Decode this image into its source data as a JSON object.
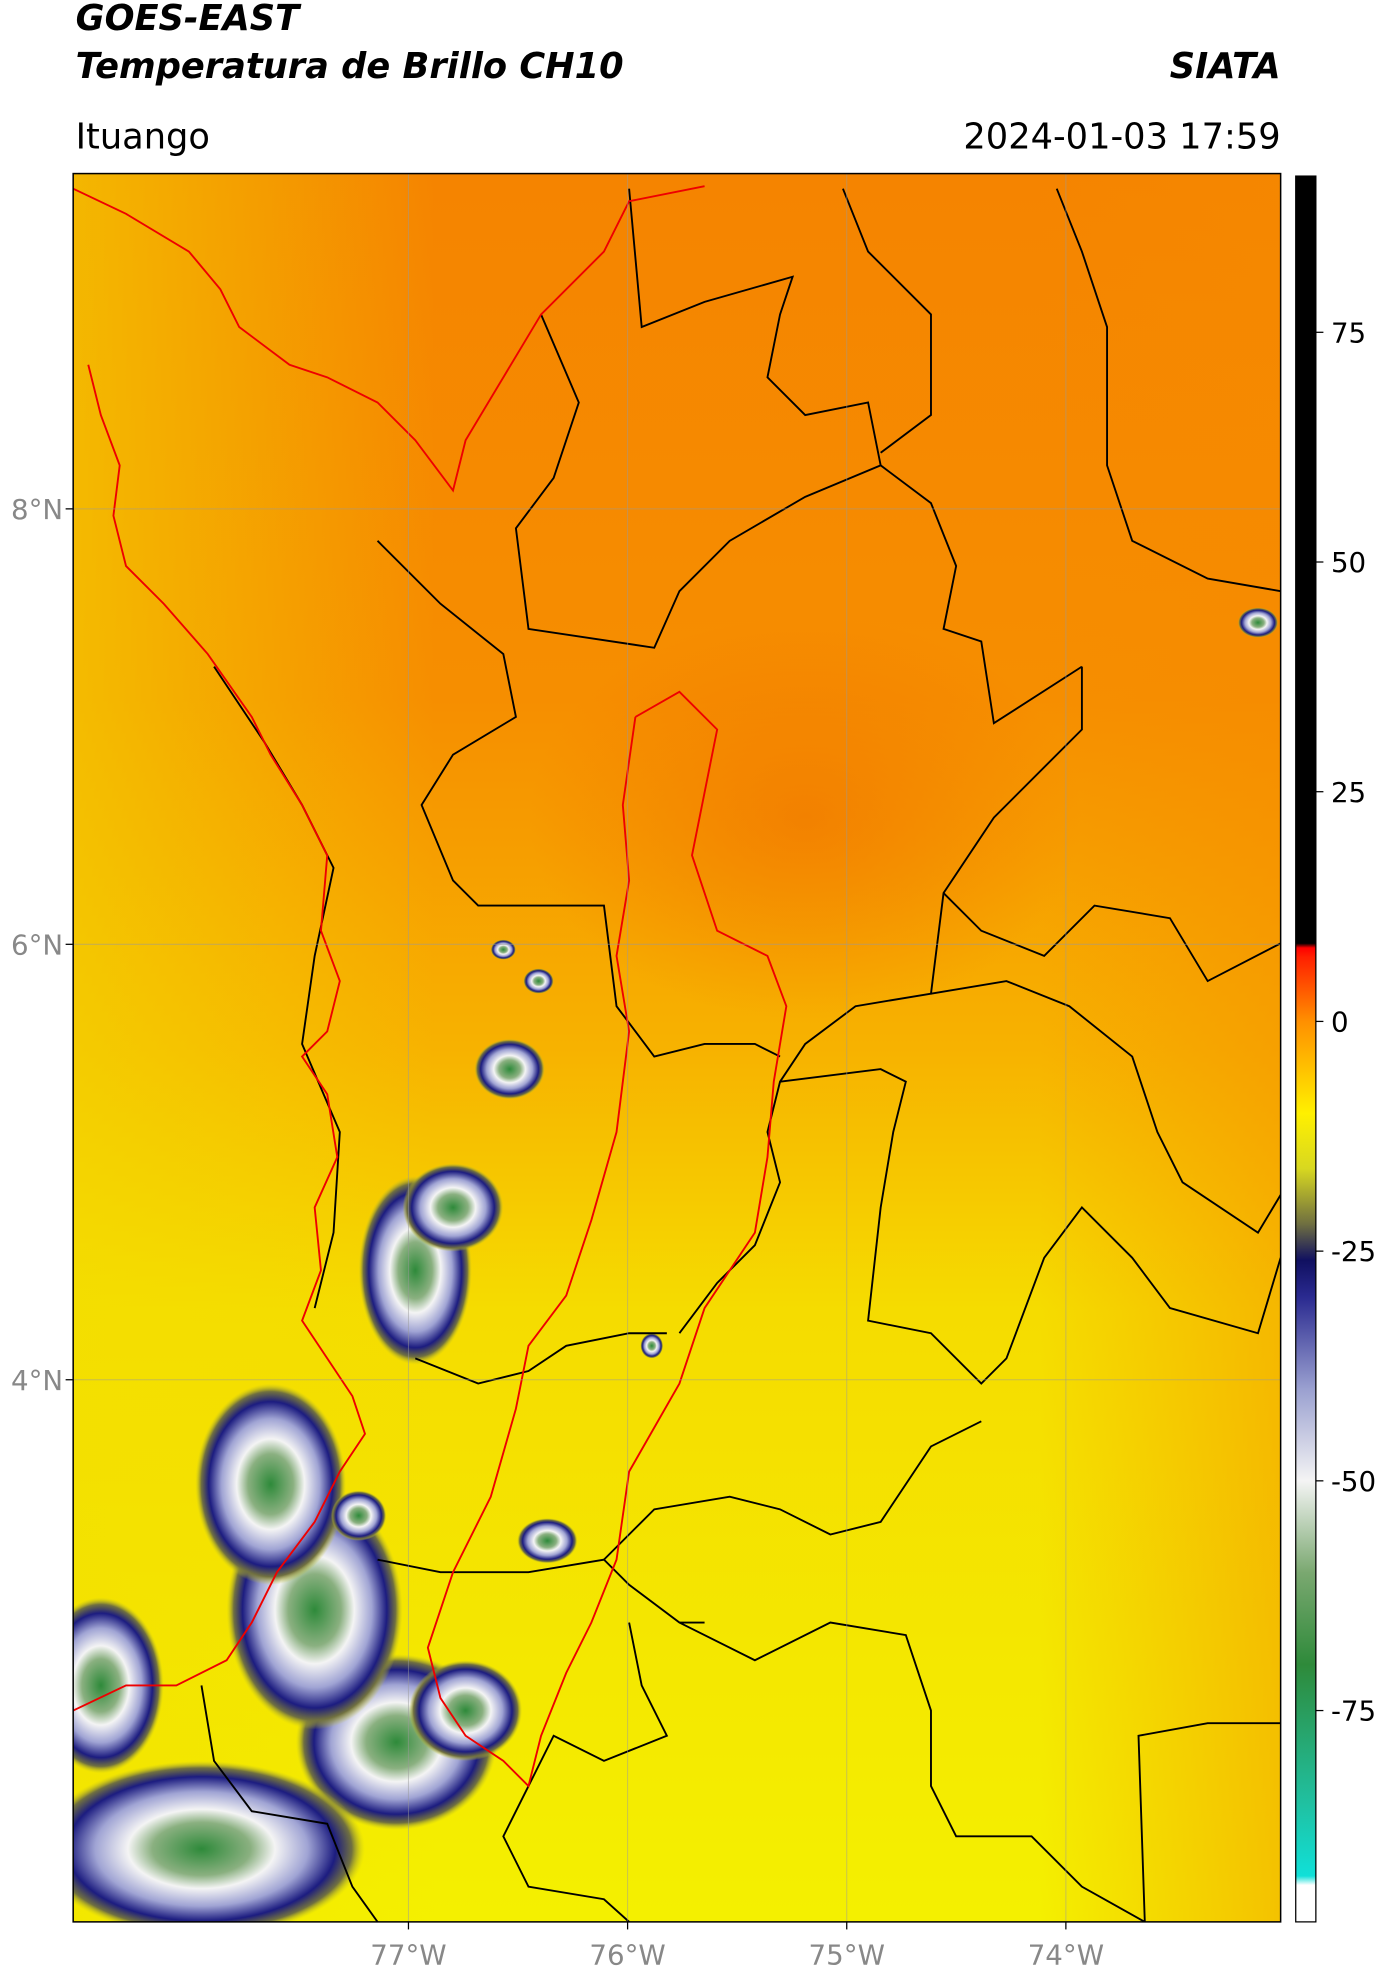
{
  "header": {
    "title": "GOES-EAST",
    "subtitle": "Temperatura de Brillo CH10",
    "source": "SIATA",
    "location": "Ituango",
    "timestamp": "2024-01-03 17:59"
  },
  "map": {
    "xlim": [
      -78.53,
      -73.02
    ],
    "ylim": [
      1.51,
      9.54
    ],
    "grid": true,
    "xticks": [
      {
        "value": -77,
        "label": "77°W"
      },
      {
        "value": -76,
        "label": "76°W"
      },
      {
        "value": -75,
        "label": "75°W"
      },
      {
        "value": -74,
        "label": "74°W"
      }
    ],
    "yticks": [
      {
        "value": 8,
        "label": "8°N"
      },
      {
        "value": 6,
        "label": "6°N"
      },
      {
        "value": 4,
        "label": "4°N"
      }
    ]
  },
  "colorbar": {
    "clim": [
      -98,
      92
    ],
    "ticks": [
      75,
      50,
      25,
      0,
      -25,
      -50,
      -75
    ],
    "stops": [
      {
        "value": -98,
        "color": "#ffffff"
      },
      {
        "value": -94,
        "color": "#ffffff"
      },
      {
        "value": -93,
        "color": "#10e0d8"
      },
      {
        "value": -85,
        "color": "#20c0a0"
      },
      {
        "value": -70,
        "color": "#2e8a3a"
      },
      {
        "value": -60,
        "color": "#7aa870"
      },
      {
        "value": -50,
        "color": "#f4f4f4"
      },
      {
        "value": -40,
        "color": "#9aa0d0"
      },
      {
        "value": -30,
        "color": "#2a2a90"
      },
      {
        "value": -26,
        "color": "#101060"
      },
      {
        "value": -22,
        "color": "#707040"
      },
      {
        "value": -16,
        "color": "#d8d820"
      },
      {
        "value": -10,
        "color": "#fff000"
      },
      {
        "value": 0,
        "color": "#ff9000"
      },
      {
        "value": 7,
        "color": "#ff2000"
      },
      {
        "value": 8,
        "color": "#ff0000"
      },
      {
        "value": 8.5,
        "color": "#000000"
      },
      {
        "value": 92,
        "color": "#000000"
      }
    ]
  }
}
